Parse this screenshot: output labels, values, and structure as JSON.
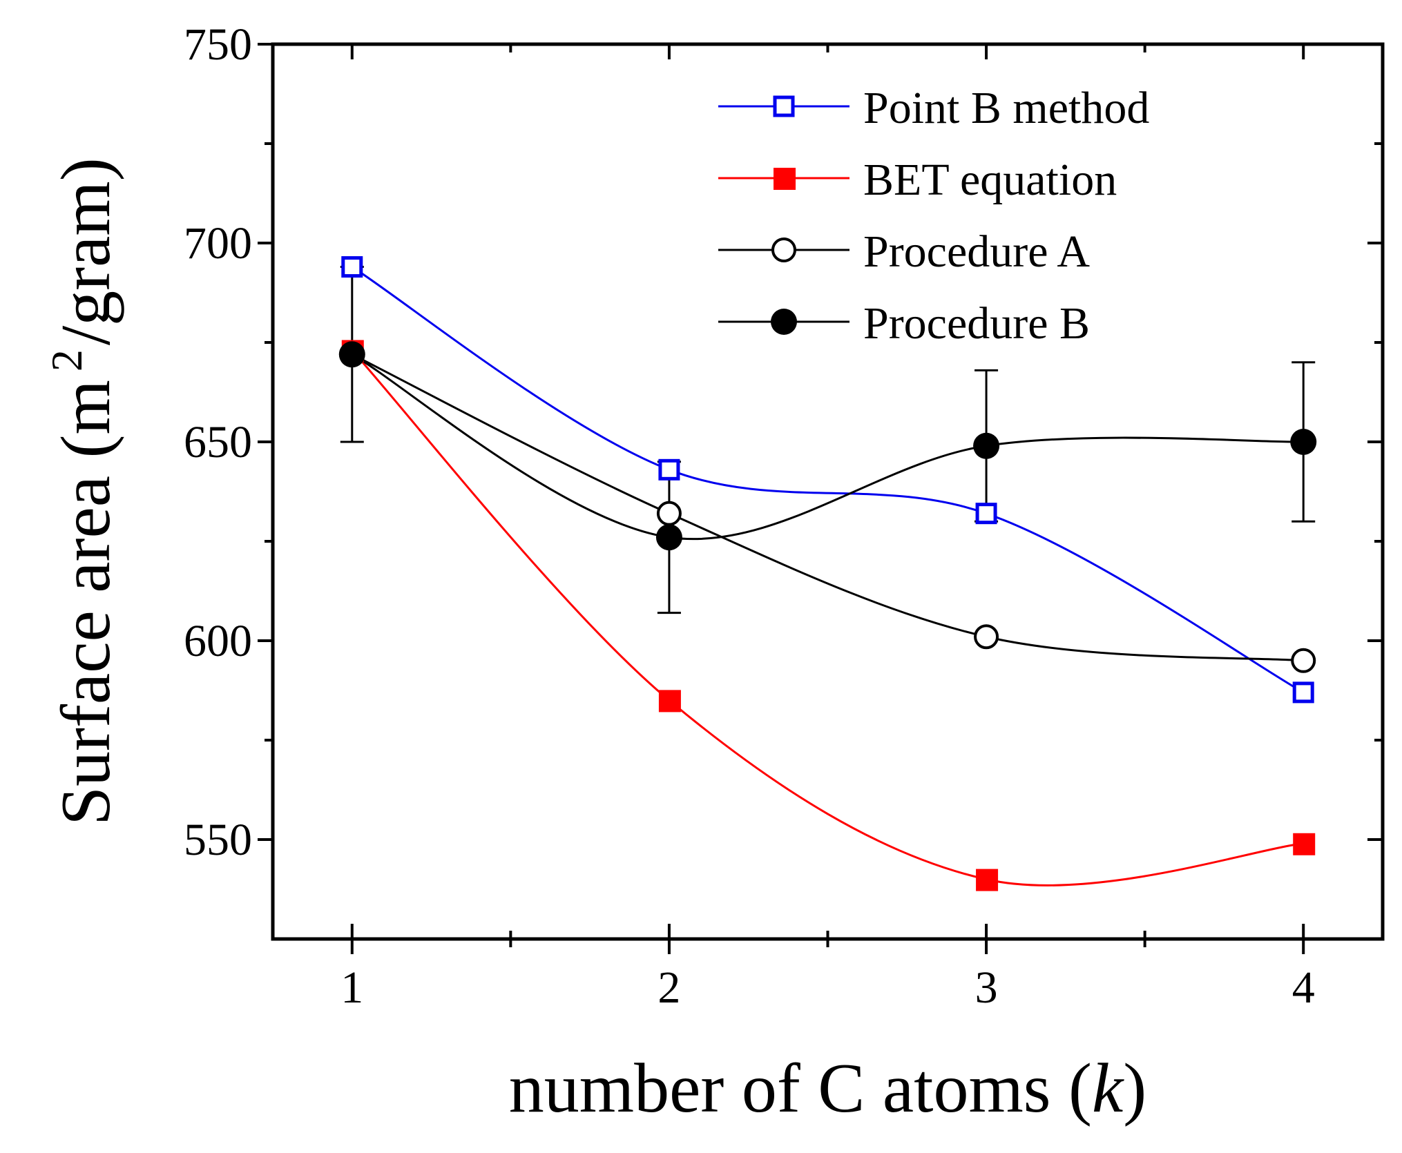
{
  "chart_data": {
    "type": "line",
    "xlabel": "number of C atoms (k)",
    "xlabel_parts": {
      "prefix": "number of C atoms (",
      "var": "k",
      "suffix": ")"
    },
    "ylabel": "Surface area (m2/gram)",
    "ylabel_parts": {
      "prefix": "Surface area (m",
      "sup": "2",
      "suffix": "/gram)"
    },
    "x": [
      1,
      2,
      3,
      4
    ],
    "xlim": [
      0.75,
      4.25
    ],
    "ylim": [
      525,
      750
    ],
    "xticks": [
      "1",
      "2",
      "3",
      "4"
    ],
    "yticks": [
      "550",
      "600",
      "650",
      "700",
      "750"
    ],
    "legend_position": "top-right",
    "series": [
      {
        "name": "Point B method",
        "color": "#0000ee",
        "marker": "square-open",
        "values": [
          694,
          643,
          632,
          587
        ]
      },
      {
        "name": "BET equation",
        "color": "#ff0000",
        "marker": "square-filled",
        "values": [
          673,
          585,
          540,
          549
        ]
      },
      {
        "name": "Procedure A",
        "color": "#000000",
        "marker": "circle-open",
        "values": [
          672,
          632,
          601,
          595
        ]
      },
      {
        "name": "Procedure B",
        "color": "#000000",
        "marker": "circle-filled",
        "values": [
          672,
          626,
          649,
          650
        ],
        "errors": [
          22,
          19,
          19,
          20
        ]
      }
    ]
  }
}
